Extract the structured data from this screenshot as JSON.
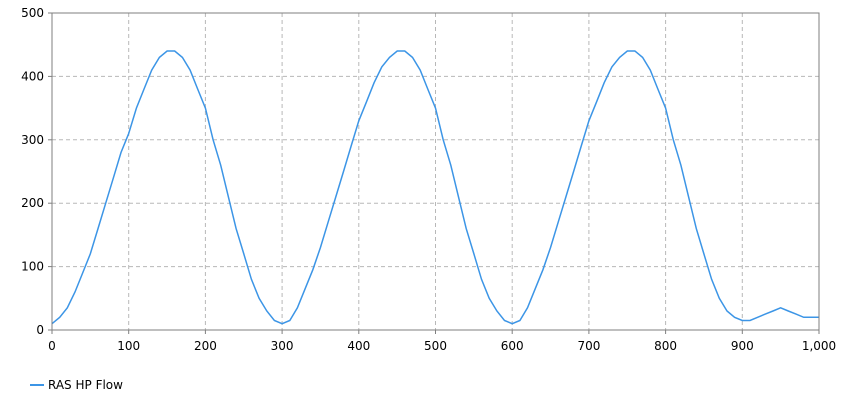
{
  "chart_data": {
    "type": "line",
    "xlim": [
      0,
      1000
    ],
    "ylim": [
      0,
      500
    ],
    "x_ticks": [
      0,
      100,
      200,
      300,
      400,
      500,
      600,
      700,
      800,
      900,
      1000
    ],
    "x_tick_labels": [
      "0",
      "100",
      "200",
      "300",
      "400",
      "500",
      "600",
      "700",
      "800",
      "900",
      "1,000"
    ],
    "y_ticks": [
      0,
      100,
      200,
      300,
      400,
      500
    ],
    "y_tick_labels": [
      "0",
      "100",
      "200",
      "300",
      "400",
      "500"
    ],
    "grid": true,
    "legend_position": "bottom-left",
    "series": [
      {
        "name": "RAS HP Flow",
        "color": "#3c95e6",
        "x": [
          0,
          10,
          20,
          30,
          40,
          50,
          60,
          70,
          80,
          90,
          100,
          110,
          120,
          130,
          140,
          150,
          160,
          170,
          180,
          190,
          200,
          210,
          220,
          230,
          240,
          250,
          260,
          270,
          280,
          290,
          300,
          310,
          320,
          330,
          340,
          350,
          360,
          370,
          380,
          390,
          400,
          410,
          420,
          430,
          440,
          450,
          460,
          470,
          480,
          490,
          500,
          510,
          520,
          530,
          540,
          550,
          560,
          570,
          580,
          590,
          600,
          610,
          620,
          630,
          640,
          650,
          660,
          670,
          680,
          690,
          700,
          710,
          720,
          730,
          740,
          750,
          760,
          770,
          780,
          790,
          800,
          810,
          820,
          830,
          840,
          850,
          860,
          870,
          880,
          890,
          900,
          910,
          920,
          930,
          940,
          950,
          960,
          970,
          980,
          990,
          1000
        ],
        "y": [
          10,
          20,
          35,
          60,
          90,
          120,
          160,
          200,
          240,
          280,
          310,
          350,
          380,
          410,
          430,
          440,
          440,
          430,
          410,
          380,
          350,
          300,
          260,
          210,
          160,
          120,
          80,
          50,
          30,
          15,
          10,
          15,
          35,
          65,
          95,
          130,
          170,
          210,
          250,
          290,
          330,
          360,
          390,
          415,
          430,
          440,
          440,
          430,
          410,
          380,
          350,
          300,
          260,
          210,
          160,
          120,
          80,
          50,
          30,
          15,
          10,
          15,
          35,
          65,
          95,
          130,
          170,
          210,
          250,
          290,
          330,
          360,
          390,
          415,
          430,
          440,
          440,
          430,
          410,
          380,
          350,
          300,
          260,
          210,
          160,
          120,
          80,
          50,
          30,
          20,
          15,
          15,
          20,
          25,
          30,
          35,
          30,
          25,
          20,
          20,
          20
        ]
      }
    ]
  }
}
